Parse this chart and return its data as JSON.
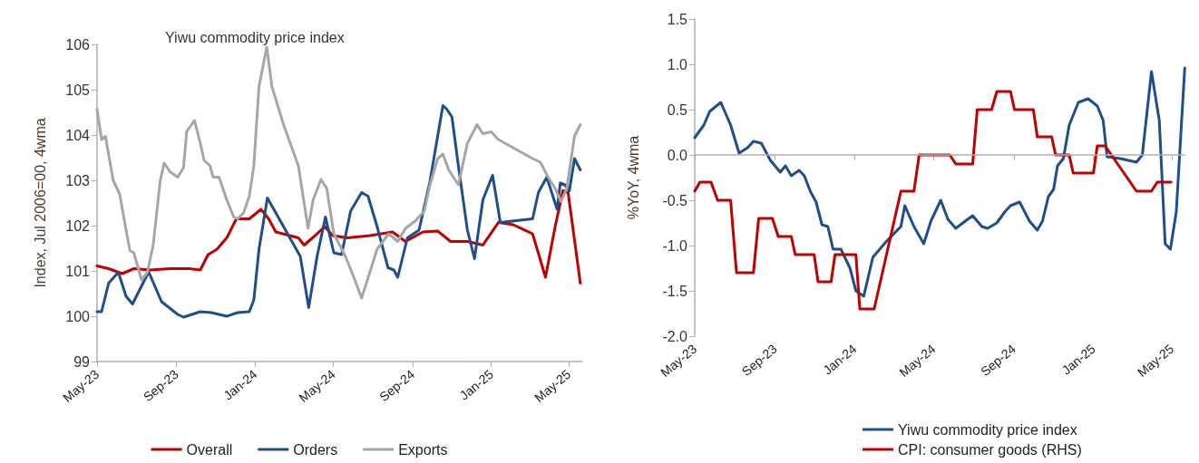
{
  "chart_data": [
    {
      "type": "line",
      "title": "Yiwu commodity price index",
      "ylabel": "Index, Jul 2006=00, 4wma",
      "xlim": [
        "2023-05-01",
        "2025-05-22"
      ],
      "xticks": [
        {
          "value": "2023-05-01",
          "label": "May-23"
        },
        {
          "value": "2023-09-01",
          "label": "Sep-23"
        },
        {
          "value": "2024-01-01",
          "label": "Jan-24"
        },
        {
          "value": "2024-05-01",
          "label": "May-24"
        },
        {
          "value": "2024-09-01",
          "label": "Sep-24"
        },
        {
          "value": "2025-01-01",
          "label": "Jan-25"
        },
        {
          "value": "2025-05-01",
          "label": "May-25"
        }
      ],
      "ylim": [
        99,
        106
      ],
      "yticks": [
        99,
        100,
        101,
        102,
        103,
        104,
        105,
        106
      ],
      "grid": false,
      "legend": "bottom",
      "marker": "none",
      "line_style": "solid",
      "series": [
        {
          "name": "Overall",
          "color": "#c00000",
          "x": [
            "2023-05-01",
            "2023-05-19",
            "2023-06-09",
            "2023-06-27",
            "2023-07-23",
            "2023-08-22",
            "2023-09-21",
            "2023-10-08",
            "2023-10-20",
            "2023-11-03",
            "2023-11-18",
            "2023-12-03",
            "2023-12-23",
            "2024-01-10",
            "2024-01-22",
            "2024-02-02",
            "2024-03-08",
            "2024-03-17",
            "2024-04-03",
            "2024-04-18",
            "2024-04-30",
            "2024-05-23",
            "2024-06-27",
            "2024-08-01",
            "2024-08-21",
            "2024-09-17",
            "2024-10-10",
            "2024-10-30",
            "2024-11-25",
            "2024-12-19",
            "2025-01-12",
            "2025-02-04",
            "2025-03-06",
            "2025-03-26",
            "2025-04-10",
            "2025-04-22",
            "2025-04-30",
            "2025-05-19"
          ],
          "values": [
            101.11,
            101.05,
            100.94,
            101.05,
            101.02,
            101.05,
            101.05,
            101.02,
            101.36,
            101.48,
            101.73,
            102.15,
            102.15,
            102.36,
            102.15,
            101.86,
            101.73,
            101.57,
            101.78,
            101.98,
            101.78,
            101.73,
            101.78,
            101.86,
            101.65,
            101.86,
            101.88,
            101.65,
            101.65,
            101.57,
            102.07,
            102.02,
            101.82,
            100.86,
            101.98,
            102.77,
            102.73,
            100.73
          ]
        },
        {
          "name": "Orders",
          "color": "#1f4e8c",
          "x": [
            "2023-05-01",
            "2023-05-08",
            "2023-05-19",
            "2023-06-03",
            "2023-06-15",
            "2023-06-25",
            "2023-07-20",
            "2023-08-09",
            "2023-09-03",
            "2023-09-12",
            "2023-10-08",
            "2023-10-25",
            "2023-11-18",
            "2023-12-05",
            "2023-12-23",
            "2023-12-30",
            "2024-01-07",
            "2024-01-20",
            "2024-02-14",
            "2024-03-11",
            "2024-03-24",
            "2024-04-06",
            "2024-04-19",
            "2024-05-02",
            "2024-05-14",
            "2024-05-28",
            "2024-06-14",
            "2024-06-24",
            "2024-07-08",
            "2024-07-25",
            "2024-08-03",
            "2024-08-09",
            "2024-08-24",
            "2024-09-11",
            "2024-09-28",
            "2024-10-18",
            "2024-10-24",
            "2024-11-01",
            "2024-11-11",
            "2024-11-25",
            "2024-12-06",
            "2024-12-19",
            "2025-01-03",
            "2025-01-15",
            "2025-03-06",
            "2025-03-15",
            "2025-03-28",
            "2025-04-13",
            "2025-04-18",
            "2025-04-25",
            "2025-05-02",
            "2025-05-10",
            "2025-05-19"
          ],
          "values": [
            100.1,
            100.1,
            100.73,
            100.97,
            100.44,
            100.27,
            100.98,
            100.32,
            100.04,
            99.98,
            100.1,
            100.08,
            100.0,
            100.08,
            100.1,
            100.36,
            101.48,
            102.61,
            101.98,
            101.32,
            100.19,
            101.32,
            102.19,
            101.4,
            101.36,
            102.32,
            102.73,
            102.65,
            101.98,
            101.07,
            101.02,
            100.86,
            101.73,
            101.9,
            102.98,
            104.65,
            104.57,
            104.4,
            103.32,
            101.9,
            101.27,
            102.57,
            103.11,
            102.07,
            102.15,
            102.73,
            103.07,
            102.36,
            102.94,
            102.9,
            102.77,
            103.48,
            103.23
          ]
        },
        {
          "name": "Exports",
          "color": "#a6a6a6",
          "x": [
            "2023-05-01",
            "2023-05-08",
            "2023-05-14",
            "2023-05-26",
            "2023-06-05",
            "2023-06-15",
            "2023-06-21",
            "2023-06-27",
            "2023-07-09",
            "2023-07-18",
            "2023-07-27",
            "2023-08-07",
            "2023-08-13",
            "2023-08-22",
            "2023-09-03",
            "2023-09-12",
            "2023-09-17",
            "2023-09-29",
            "2023-10-08",
            "2023-10-14",
            "2023-10-23",
            "2023-10-28",
            "2023-11-06",
            "2023-11-18",
            "2023-11-29",
            "2023-12-05",
            "2023-12-14",
            "2023-12-23",
            "2023-12-30",
            "2024-01-07",
            "2024-01-19",
            "2024-01-27",
            "2024-02-14",
            "2024-03-08",
            "2024-03-23",
            "2024-03-31",
            "2024-04-12",
            "2024-04-21",
            "2024-05-02",
            "2024-05-20",
            "2024-06-03",
            "2024-06-14",
            "2024-06-27",
            "2024-07-08",
            "2024-07-26",
            "2024-08-09",
            "2024-08-21",
            "2024-09-05",
            "2024-09-19",
            "2024-09-28",
            "2024-10-10",
            "2024-10-18",
            "2024-10-27",
            "2024-11-11",
            "2024-11-25",
            "2024-12-10",
            "2024-12-19",
            "2025-01-01",
            "2025-01-12",
            "2025-03-06",
            "2025-03-18",
            "2025-03-30",
            "2025-04-10",
            "2025-04-19",
            "2025-04-28",
            "2025-05-10",
            "2025-05-19"
          ],
          "values": [
            104.57,
            103.9,
            103.97,
            103.0,
            102.7,
            101.9,
            101.45,
            101.4,
            100.8,
            100.97,
            101.57,
            103.0,
            103.38,
            103.19,
            103.07,
            103.28,
            104.08,
            104.32,
            103.82,
            103.44,
            103.32,
            103.07,
            103.07,
            102.57,
            102.19,
            102.15,
            102.28,
            102.65,
            103.32,
            105.07,
            105.94,
            105.07,
            104.23,
            103.32,
            101.94,
            102.57,
            103.02,
            102.82,
            101.82,
            101.32,
            100.82,
            100.4,
            100.98,
            101.48,
            101.82,
            101.65,
            101.94,
            102.1,
            102.32,
            102.9,
            103.48,
            103.58,
            103.23,
            102.9,
            103.82,
            104.23,
            104.03,
            104.07,
            103.9,
            103.48,
            103.4,
            103.07,
            102.82,
            102.53,
            102.82,
            103.98,
            104.23
          ]
        }
      ]
    },
    {
      "type": "line",
      "ylabel": "%YoY, 4wma",
      "xlim": [
        "2023-05-01",
        "2025-05-22"
      ],
      "xticks": [
        {
          "value": "2023-05-01",
          "label": "May-23"
        },
        {
          "value": "2023-09-01",
          "label": "Sep-23"
        },
        {
          "value": "2024-01-01",
          "label": "Jan-24"
        },
        {
          "value": "2024-05-01",
          "label": "May-24"
        },
        {
          "value": "2024-09-01",
          "label": "Sep-24"
        },
        {
          "value": "2025-01-01",
          "label": "Jan-25"
        },
        {
          "value": "2025-05-01",
          "label": "May-25"
        }
      ],
      "ylim": [
        -2,
        1.5
      ],
      "yticks": [
        {
          "value": -2,
          "label": "-2.0"
        },
        -1.5,
        {
          "value": -1,
          "label": "-1.0"
        },
        -0.5,
        {
          "value": 0,
          "label": "0.0"
        },
        0.5,
        {
          "value": 1,
          "label": "1.0"
        },
        1.5
      ],
      "grid": false,
      "ref_lines": [
        {
          "axis": "y",
          "value": 0,
          "color": "#b0b0b0"
        }
      ],
      "legend": "bottom",
      "marker": "none",
      "line_style": "solid",
      "series": [
        {
          "name": "Yiwu commodity price index",
          "color": "#1f4e8c",
          "x": [
            "2023-05-01",
            "2023-05-15",
            "2023-05-24",
            "2023-06-10",
            "2023-06-25",
            "2023-07-08",
            "2023-07-21",
            "2023-07-30",
            "2023-08-11",
            "2023-08-25",
            "2023-09-09",
            "2023-09-17",
            "2023-09-26",
            "2023-10-08",
            "2023-10-16",
            "2023-10-25",
            "2023-11-03",
            "2023-11-12",
            "2023-11-21",
            "2023-11-29",
            "2023-12-11",
            "2023-12-25",
            "2024-01-03",
            "2024-01-15",
            "2024-01-29",
            "2024-02-18",
            "2024-03-12",
            "2024-03-18",
            "2024-04-01",
            "2024-04-16",
            "2024-04-27",
            "2024-05-12",
            "2024-05-23",
            "2024-06-04",
            "2024-06-15",
            "2024-06-30",
            "2024-07-14",
            "2024-07-23",
            "2024-08-06",
            "2024-08-18",
            "2024-08-27",
            "2024-09-10",
            "2024-09-25",
            "2024-10-07",
            "2024-10-15",
            "2024-10-24",
            "2024-11-01",
            "2024-11-07",
            "2024-11-16",
            "2024-11-25",
            "2024-12-09",
            "2024-12-24",
            "2025-01-07",
            "2025-01-16",
            "2025-01-22",
            "2025-02-11",
            "2025-03-08",
            "2025-03-17",
            "2025-03-31",
            "2025-04-12",
            "2025-04-21",
            "2025-04-29",
            "2025-05-08",
            "2025-05-21"
          ],
          "values": [
            0.19,
            0.33,
            0.48,
            0.58,
            0.33,
            0.02,
            0.08,
            0.15,
            0.13,
            -0.06,
            -0.19,
            -0.12,
            -0.23,
            -0.17,
            -0.23,
            -0.4,
            -0.52,
            -0.77,
            -0.79,
            -1.04,
            -1.04,
            -1.25,
            -1.5,
            -1.56,
            -1.13,
            -0.96,
            -0.79,
            -0.56,
            -0.79,
            -0.98,
            -0.73,
            -0.5,
            -0.71,
            -0.81,
            -0.75,
            -0.67,
            -0.79,
            -0.81,
            -0.75,
            -0.63,
            -0.56,
            -0.52,
            -0.73,
            -0.83,
            -0.73,
            -0.46,
            -0.38,
            -0.12,
            -0.04,
            0.33,
            0.58,
            0.62,
            0.54,
            0.38,
            -0.02,
            -0.04,
            -0.08,
            0.0,
            0.92,
            0.38,
            -0.98,
            -1.04,
            -0.63,
            0.96
          ]
        },
        {
          "name": "CPI: consumer goods (RHS)",
          "color": "#c00000",
          "x": [
            "2023-05-01",
            "2023-05-09",
            "2023-05-26",
            "2023-06-05",
            "2023-06-25",
            "2023-07-04",
            "2023-07-30",
            "2023-08-07",
            "2023-08-28",
            "2023-09-06",
            "2023-09-26",
            "2023-10-02",
            "2023-10-31",
            "2023-11-06",
            "2023-11-26",
            "2023-12-02",
            "2024-01-03",
            "2024-01-09",
            "2024-01-31",
            "2024-03-12",
            "2024-04-01",
            "2024-04-09",
            "2024-05-26",
            "2024-06-04",
            "2024-06-30",
            "2024-07-07",
            "2024-07-29",
            "2024-08-06",
            "2024-08-27",
            "2024-09-02",
            "2024-10-01",
            "2024-10-07",
            "2024-10-29",
            "2024-11-04",
            "2024-11-25",
            "2024-12-01",
            "2025-01-01",
            "2025-01-07",
            "2025-01-19",
            "2025-03-08",
            "2025-03-31",
            "2025-04-09",
            "2025-04-30"
          ],
          "values": [
            -0.4,
            -0.3,
            -0.3,
            -0.5,
            -0.5,
            -1.3,
            -1.3,
            -0.7,
            -0.7,
            -0.9,
            -0.9,
            -1.1,
            -1.1,
            -1.4,
            -1.4,
            -1.1,
            -1.1,
            -1.7,
            -1.7,
            -0.4,
            -0.4,
            0.0,
            0.0,
            -0.1,
            -0.1,
            0.5,
            0.5,
            0.7,
            0.7,
            0.5,
            0.5,
            0.2,
            0.2,
            0.0,
            0.0,
            -0.2,
            -0.2,
            0.1,
            0.1,
            -0.4,
            -0.4,
            -0.3,
            -0.3
          ]
        }
      ]
    }
  ]
}
